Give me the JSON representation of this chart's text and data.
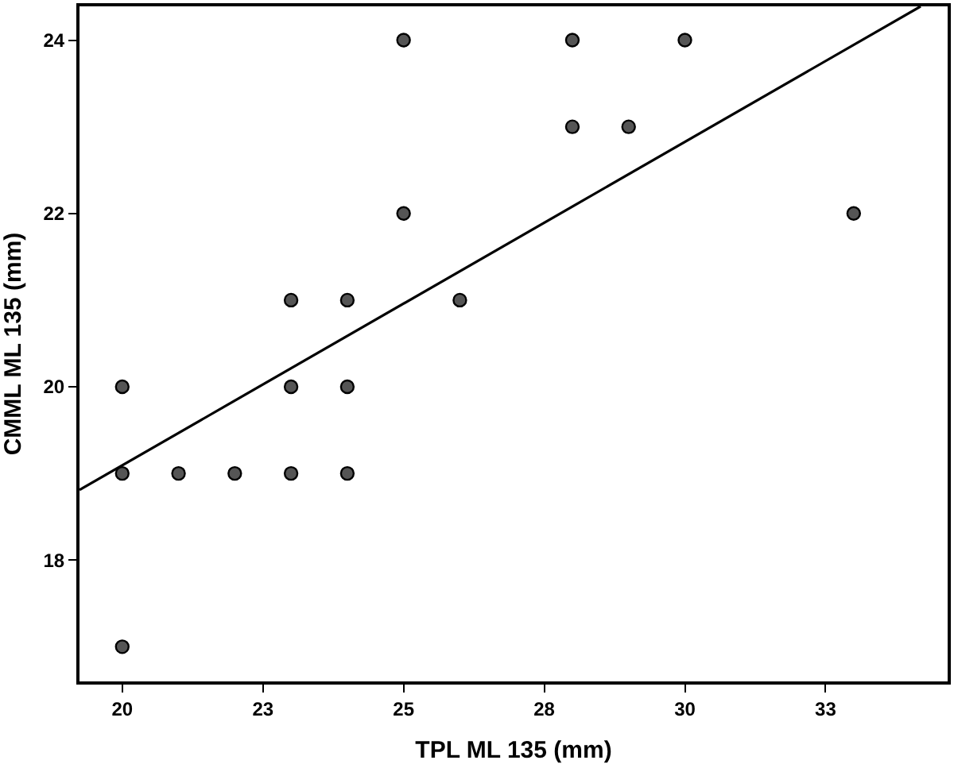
{
  "chart_data": {
    "type": "scatter",
    "xlabel": "TPL ML 135 (mm)",
    "ylabel": "CMML ML 135 (mm)",
    "xlim": [
      19.24,
      34.67
    ],
    "ylim": [
      16.6,
      24.39
    ],
    "xticks": [
      20,
      {
        "value": 22.5,
        "label": "23"
      },
      25,
      {
        "value": 27.5,
        "label": "28"
      },
      30,
      {
        "value": 32.5,
        "label": "33"
      }
    ],
    "yticks": [
      18,
      20,
      22,
      24
    ],
    "marker": "circle",
    "series": [
      {
        "color": "#555555",
        "x": [
          20,
          20,
          20,
          21,
          22,
          23,
          23,
          23,
          24,
          24,
          24,
          25,
          25,
          26,
          28,
          28,
          29,
          30,
          33
        ],
        "values": [
          20,
          19,
          17,
          19,
          19,
          21,
          20,
          19,
          21,
          20,
          19,
          24,
          22,
          21,
          24,
          23,
          23,
          24,
          22
        ]
      },
      {
        "type": "line",
        "color": "#000000",
        "x": [
          19.24,
          34.19
        ],
        "values": [
          18.81,
          24.39
        ],
        "line_style": "solid",
        "marker": "none"
      }
    ]
  }
}
